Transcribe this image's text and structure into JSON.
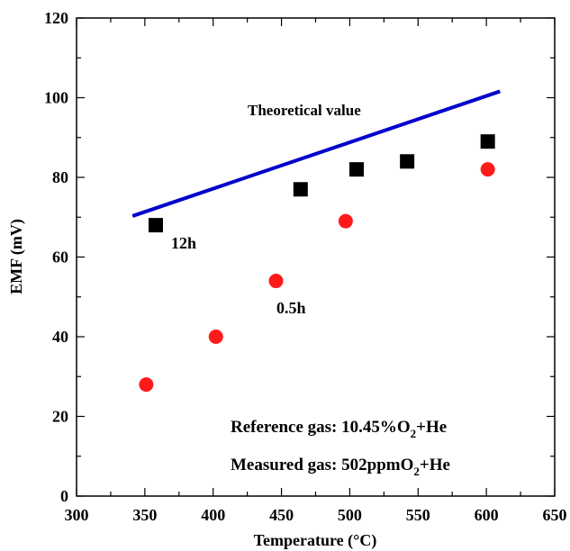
{
  "chart_data": {
    "type": "scatter",
    "xlabel": "Temperature (°C)",
    "ylabel": "EMF (mV)",
    "xlim": [
      300,
      650
    ],
    "ylim": [
      0,
      120
    ],
    "x_ticks": [
      "300",
      "350",
      "400",
      "450",
      "500",
      "550",
      "600",
      "650"
    ],
    "y_ticks": [
      "0",
      "20",
      "40",
      "60",
      "80",
      "100",
      "120"
    ],
    "grid": false,
    "series": [
      {
        "name": "12h",
        "marker": "square",
        "color": "#000000",
        "x": [
          358,
          464,
          505,
          542,
          601
        ],
        "y": [
          68,
          77,
          82,
          84,
          89
        ]
      },
      {
        "name": "0.5h",
        "marker": "circle",
        "color": "#ff1a1a",
        "x": [
          351,
          402,
          446,
          497,
          601
        ],
        "y": [
          28,
          40,
          54,
          69,
          82
        ]
      },
      {
        "name": "Theoretical value",
        "marker": "line",
        "color": "#0000cc",
        "x": [
          341,
          610
        ],
        "y": [
          70.3,
          101.6
        ]
      }
    ],
    "annotations": {
      "theoretical": "Theoretical value",
      "label_12h": "12h",
      "label_05h": "0.5h",
      "reference_prefix": "Reference gas: 10.45%O",
      "reference_sub": "2",
      "reference_suffix": "+He",
      "measured_prefix": "Measured gas: 502ppmO",
      "measured_sub": "2",
      "measured_suffix": "+He"
    }
  }
}
